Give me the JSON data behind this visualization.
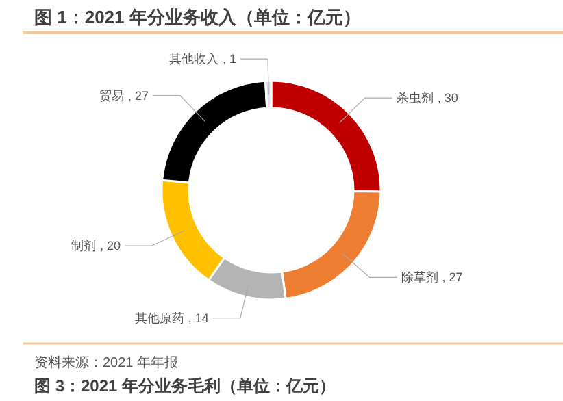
{
  "chart_data": {
    "type": "donut",
    "title": "图 1：2021 年分业务收入（单位：亿元）",
    "categories": [
      "杀虫剂",
      "除草剂",
      "其他原药",
      "制剂",
      "贸易",
      "其他收入"
    ],
    "values": [
      30,
      27,
      14,
      20,
      27,
      1
    ],
    "colors": [
      "#c00000",
      "#ed7d31",
      "#b4b4b4",
      "#ffc000",
      "#000000",
      "#e0e0e0"
    ],
    "value_labels": [
      ", 30",
      ", 27",
      ", 14",
      ", 20",
      ", 27",
      ", 1"
    ],
    "annotations": [
      "资料来源：2021 年年报",
      "图 3：2021 年分业务毛利（单位：亿元）"
    ]
  }
}
